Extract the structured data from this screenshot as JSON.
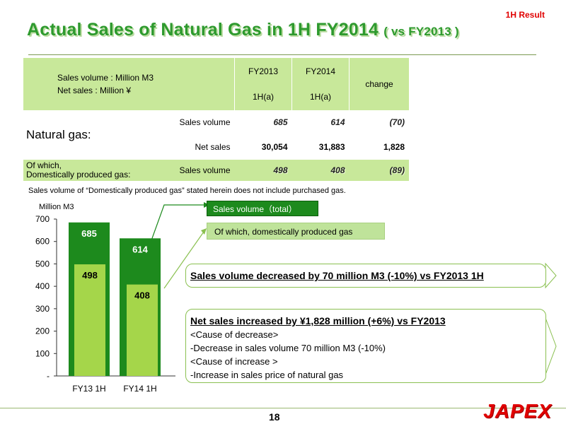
{
  "badge": "1H Result",
  "title": {
    "main": "Actual Sales of  Natural Gas  in 1H FY2014 ",
    "sub": "( vs FY2013 )"
  },
  "table": {
    "units_line1": "Sales volume : Million M3",
    "units_line2": "Net sales : Million ¥",
    "col_fy13": "FY2013",
    "col_fy14": "FY2014",
    "col_fy13_sub": "1H(a)",
    "col_fy14_sub": "1H(a)",
    "col_change": "change",
    "natural_gas_label": "Natural gas:",
    "sales_volume_label": "Sales volume",
    "net_sales_label": "Net sales",
    "domestic_label_1": "Of which,",
    "domestic_label_2": "Domestically produced gas:",
    "domestic_sales_volume_label": "Sales volume",
    "ng_sv_fy13": "685",
    "ng_sv_fy14": "614",
    "ng_sv_change": "(70)",
    "ng_ns_fy13": "30,054",
    "ng_ns_fy14": "31,883",
    "ng_ns_change": "1,828",
    "dom_sv_fy13": "498",
    "dom_sv_fy14": "408",
    "dom_sv_change": "(89)"
  },
  "note": "Sales volume of “Domestically produced gas” stated herein does not include purchased gas.",
  "legend": {
    "total": "Sales volume（total）",
    "domestic": "Of which, domestically produced gas"
  },
  "callouts": {
    "volume": "Sales volume decreased by 70 million M3 (-10%)  vs  FY2013 1H",
    "sales_title": "Net sales increased by ¥1,828 million (+6%) vs FY2013",
    "cause_decrease": "<Cause of decrease>",
    "decrease_item": " -Decrease in sales volume 70 million M3 (-10%)",
    "cause_increase": "<Cause of increase >",
    "increase_item": " -Increase in sales price of natural gas"
  },
  "page_number": "18",
  "logo": "JAPEX",
  "colors": {
    "total": "#1d8a1d",
    "domestic": "#a5d64a",
    "accent": "#e00000"
  },
  "chart_data": {
    "type": "bar",
    "ylabel": "Million M3",
    "categories": [
      "FY13 1H",
      "FY14 1H"
    ],
    "series": [
      {
        "name": "Sales volume（total）",
        "values": [
          685,
          614
        ]
      },
      {
        "name": "Of which, domestically produced gas",
        "values": [
          498,
          408
        ]
      }
    ],
    "ylim": [
      0,
      700
    ],
    "yticks": [
      {
        "value": 700,
        "label": "700"
      },
      {
        "value": 600,
        "label": "600"
      },
      {
        "value": 500,
        "label": "500"
      },
      {
        "value": 400,
        "label": "400"
      },
      {
        "value": 300,
        "label": "300"
      },
      {
        "value": 200,
        "label": "200"
      },
      {
        "value": 100,
        "label": "100"
      },
      {
        "value": 0,
        "label": "-"
      }
    ],
    "grid": false
  }
}
